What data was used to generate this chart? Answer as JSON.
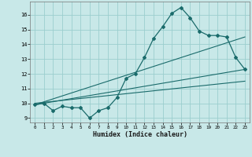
{
  "xlabel": "Humidex (Indice chaleur)",
  "bg_color": "#c8e8e8",
  "grid_color": "#9bcece",
  "line_color": "#1a6b6b",
  "x_data": [
    0,
    1,
    2,
    3,
    4,
    5,
    6,
    7,
    8,
    9,
    10,
    11,
    12,
    13,
    14,
    15,
    16,
    17,
    18,
    19,
    20,
    21,
    22,
    23
  ],
  "y_main": [
    9.9,
    10.0,
    9.5,
    9.8,
    9.7,
    9.7,
    9.0,
    9.5,
    9.7,
    10.4,
    11.7,
    12.0,
    13.1,
    14.4,
    15.2,
    16.1,
    16.5,
    15.8,
    14.9,
    14.6,
    14.6,
    14.5,
    13.1,
    12.3
  ],
  "ylim": [
    8.7,
    16.9
  ],
  "xlim": [
    -0.5,
    23.5
  ],
  "yticks": [
    9,
    10,
    11,
    12,
    13,
    14,
    15,
    16
  ],
  "xticks": [
    0,
    1,
    2,
    3,
    4,
    5,
    6,
    7,
    8,
    9,
    10,
    11,
    12,
    13,
    14,
    15,
    16,
    17,
    18,
    19,
    20,
    21,
    22,
    23
  ],
  "trend1_x": [
    0,
    23
  ],
  "trend1_y": [
    9.9,
    12.3
  ],
  "trend2_x": [
    0,
    23
  ],
  "trend2_y": [
    9.9,
    14.5
  ],
  "trend3_x": [
    0,
    23
  ],
  "trend3_y": [
    10.0,
    11.5
  ]
}
